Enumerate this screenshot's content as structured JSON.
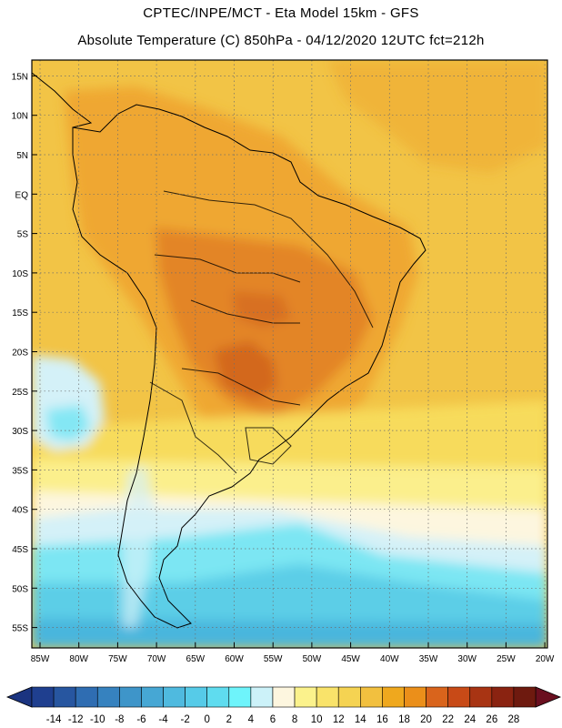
{
  "header": {
    "line1": "CPTEC/INPE/MCT -  Eta Model 15km - GFS",
    "line2": "Absolute Temperature (C) 850hPa - 04/12/2020 12UTC fct=212h"
  },
  "axes": {
    "lat_labels": [
      "15N",
      "10N",
      "5N",
      "EQ",
      "5S",
      "10S",
      "15S",
      "20S",
      "25S",
      "30S",
      "35S",
      "40S",
      "45S",
      "50S",
      "55S"
    ],
    "lon_labels": [
      "85W",
      "80W",
      "75W",
      "70W",
      "65W",
      "60W",
      "55W",
      "50W",
      "45W",
      "40W",
      "35W",
      "30W",
      "25W",
      "20W"
    ]
  },
  "colorbar": {
    "ticks": [
      "-14",
      "-12",
      "-10",
      "-8",
      "-6",
      "-4",
      "-2",
      "0",
      "2",
      "4",
      "6",
      "8",
      "10",
      "12",
      "14",
      "16",
      "18",
      "20",
      "22",
      "24",
      "26",
      "28"
    ],
    "colors": [
      "#1f3f8f",
      "#2756a0",
      "#2f6db2",
      "#3682bf",
      "#3e95c9",
      "#46a7d4",
      "#4fbadf",
      "#56cbe8",
      "#5fdcef",
      "#6ef4fb",
      "#ccf2f9",
      "#fdf6df",
      "#fbf28c",
      "#f9e36a",
      "#f5d352",
      "#f2c03f",
      "#efa81e",
      "#eb8f1a",
      "#d9641c",
      "#c84a17",
      "#a83413",
      "#8a2311",
      "#6e1a0f"
    ],
    "arrow_min_color": "#1b3480",
    "arrow_max_color": "#6a0f1f"
  },
  "map_colors": {
    "ocean_warm": "#f2c446",
    "land_hot": "#efa732",
    "core_hot": "#e07f26",
    "very_hot": "#d0621d",
    "mid_yellow": "#f7db5c",
    "light_yellow": "#fbef8c",
    "cream": "#fdf6df",
    "pale_cyan": "#d4f1f8",
    "cyan": "#7be6f3",
    "light_blue": "#59cbe6",
    "blue": "#47b4dc",
    "coast": "#000000"
  }
}
